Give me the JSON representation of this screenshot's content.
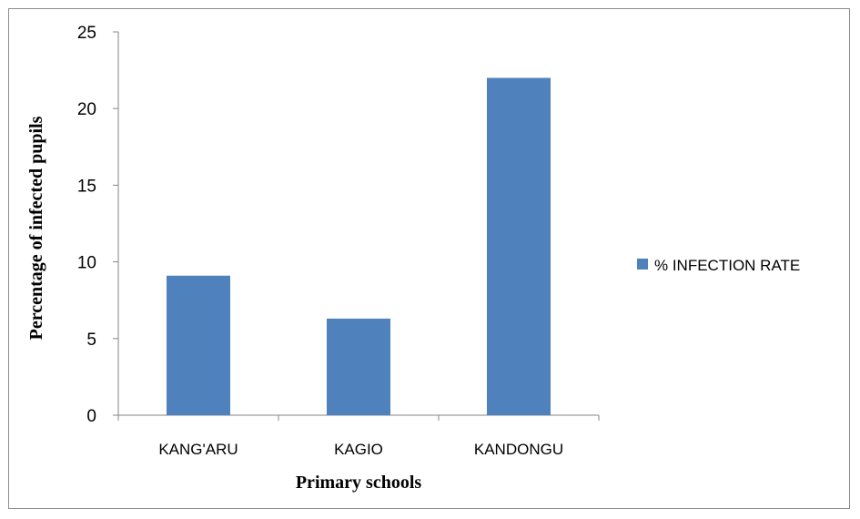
{
  "chart_data": {
    "type": "bar",
    "categories": [
      "KANG'ARU",
      "KAGIO",
      "KANDONGU"
    ],
    "series": [
      {
        "name": "% INFECTION RATE",
        "values": [
          9.1,
          6.3,
          22.0
        ],
        "color": "#4f81bd"
      }
    ],
    "title": "",
    "xlabel": "Primary schools",
    "ylabel": "Percentage of infected pupils",
    "ylim": [
      0,
      25
    ],
    "yticks": [
      0,
      5,
      10,
      15,
      20,
      25
    ],
    "grid": false,
    "legend_position": "right"
  }
}
